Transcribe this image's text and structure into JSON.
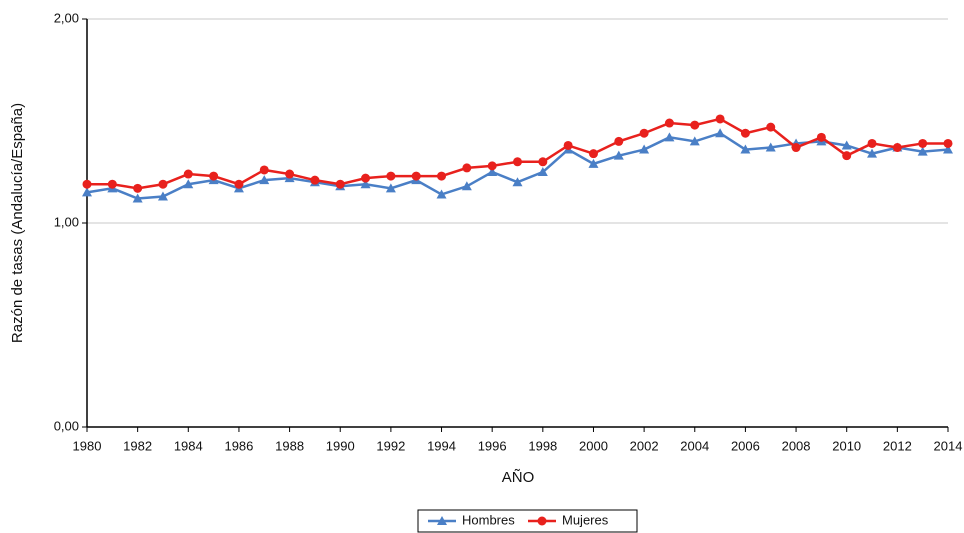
{
  "chart_data": {
    "type": "line",
    "xlabel": "AÑO",
    "ylabel": "Razón de tasas (Andalucía/España)",
    "x": [
      1980,
      1981,
      1982,
      1983,
      1984,
      1985,
      1986,
      1987,
      1988,
      1989,
      1990,
      1991,
      1992,
      1993,
      1994,
      1995,
      1996,
      1997,
      1998,
      1999,
      2000,
      2001,
      2002,
      2003,
      2004,
      2005,
      2006,
      2007,
      2008,
      2009,
      2010,
      2011,
      2012,
      2013,
      2014
    ],
    "series": [
      {
        "name": "Hombres",
        "color": "#4a7fc6",
        "marker": "triangle",
        "values": [
          1.15,
          1.17,
          1.12,
          1.13,
          1.19,
          1.21,
          1.17,
          1.21,
          1.22,
          1.2,
          1.18,
          1.19,
          1.17,
          1.21,
          1.14,
          1.18,
          1.25,
          1.2,
          1.25,
          1.36,
          1.29,
          1.33,
          1.36,
          1.42,
          1.4,
          1.44,
          1.36,
          1.37,
          1.39,
          1.4,
          1.38,
          1.34,
          1.37,
          1.35,
          1.36
        ]
      },
      {
        "name": "Mujeres",
        "color": "#e8211d",
        "marker": "circle",
        "values": [
          1.19,
          1.19,
          1.17,
          1.19,
          1.24,
          1.23,
          1.19,
          1.26,
          1.24,
          1.21,
          1.19,
          1.22,
          1.23,
          1.23,
          1.23,
          1.27,
          1.28,
          1.3,
          1.3,
          1.38,
          1.34,
          1.4,
          1.44,
          1.49,
          1.48,
          1.51,
          1.44,
          1.47,
          1.37,
          1.42,
          1.33,
          1.39,
          1.37,
          1.39,
          1.39
        ]
      }
    ],
    "xlim": [
      1980,
      2014
    ],
    "xticks": [
      1980,
      1982,
      1984,
      1986,
      1988,
      1990,
      1992,
      1994,
      1996,
      1998,
      2000,
      2002,
      2004,
      2006,
      2008,
      2010,
      2012,
      2014
    ],
    "ylim": [
      0,
      2
    ],
    "yticks": [
      {
        "value": 0,
        "label": "0,00"
      },
      {
        "value": 1,
        "label": "1,00"
      },
      {
        "value": 2,
        "label": "2,00"
      }
    ],
    "grid": true,
    "legend": "bottom"
  }
}
